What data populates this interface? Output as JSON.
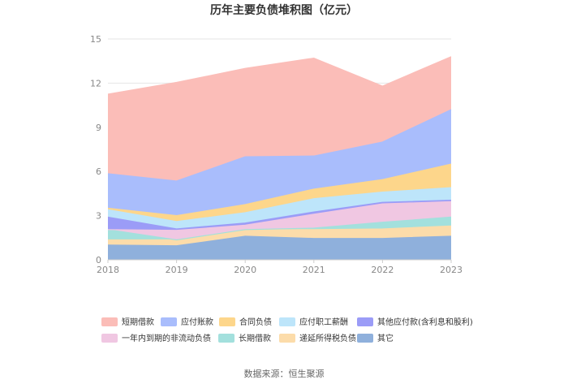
{
  "chart_data": {
    "type": "area",
    "stacked": true,
    "title": "历年主要负债堆积图（亿元）",
    "x": [
      "2018",
      "2019",
      "2020",
      "2021",
      "2022",
      "2023"
    ],
    "ylim": [
      0,
      15
    ],
    "yticks": [
      "0",
      "3",
      "6",
      "9",
      "12",
      "15"
    ],
    "grid": true,
    "legend_position": "bottom",
    "series": [
      {
        "name": "其它",
        "color": "#8fb0dc",
        "values": [
          1.0,
          0.95,
          1.6,
          1.45,
          1.45,
          1.6
        ]
      },
      {
        "name": "递延所得税负债",
        "color": "#fcdcaa",
        "values": [
          0.35,
          0.4,
          0.45,
          0.6,
          0.65,
          0.7
        ]
      },
      {
        "name": "长期借款",
        "color": "#a3e0dd",
        "values": [
          0.7,
          0.0,
          0.0,
          0.1,
          0.45,
          0.6
        ]
      },
      {
        "name": "一年内到期的非流动负债",
        "color": "#f0c7e2",
        "values": [
          0.0,
          0.65,
          0.3,
          0.95,
          1.25,
          1.05
        ]
      },
      {
        "name": "其他应付款(含利息和股利)",
        "color": "#9b9cf7",
        "values": [
          0.85,
          0.1,
          0.15,
          0.15,
          0.1,
          0.1
        ]
      },
      {
        "name": "应付职工薪酬",
        "color": "#bde5fa",
        "values": [
          0.5,
          0.5,
          0.7,
          0.9,
          0.7,
          0.85
        ]
      },
      {
        "name": "合同负债",
        "color": "#fdd68b",
        "values": [
          0.1,
          0.4,
          0.55,
          0.65,
          0.85,
          1.6
        ]
      },
      {
        "name": "应付账款",
        "color": "#a9bdfc",
        "values": [
          2.35,
          2.35,
          3.25,
          2.25,
          2.55,
          3.7
        ]
      },
      {
        "name": "短期借款",
        "color": "#fbbdb8",
        "values": [
          5.4,
          6.7,
          6.0,
          6.65,
          3.8,
          3.6
        ]
      }
    ],
    "legend_order": [
      "短期借款",
      "应付账款",
      "合同负债",
      "应付职工薪酬",
      "其他应付款(含利息和股利)",
      "一年内到期的非流动负债",
      "长期借款",
      "递延所得税负债",
      "其它"
    ]
  },
  "source_text": "数据来源：恒生聚源"
}
